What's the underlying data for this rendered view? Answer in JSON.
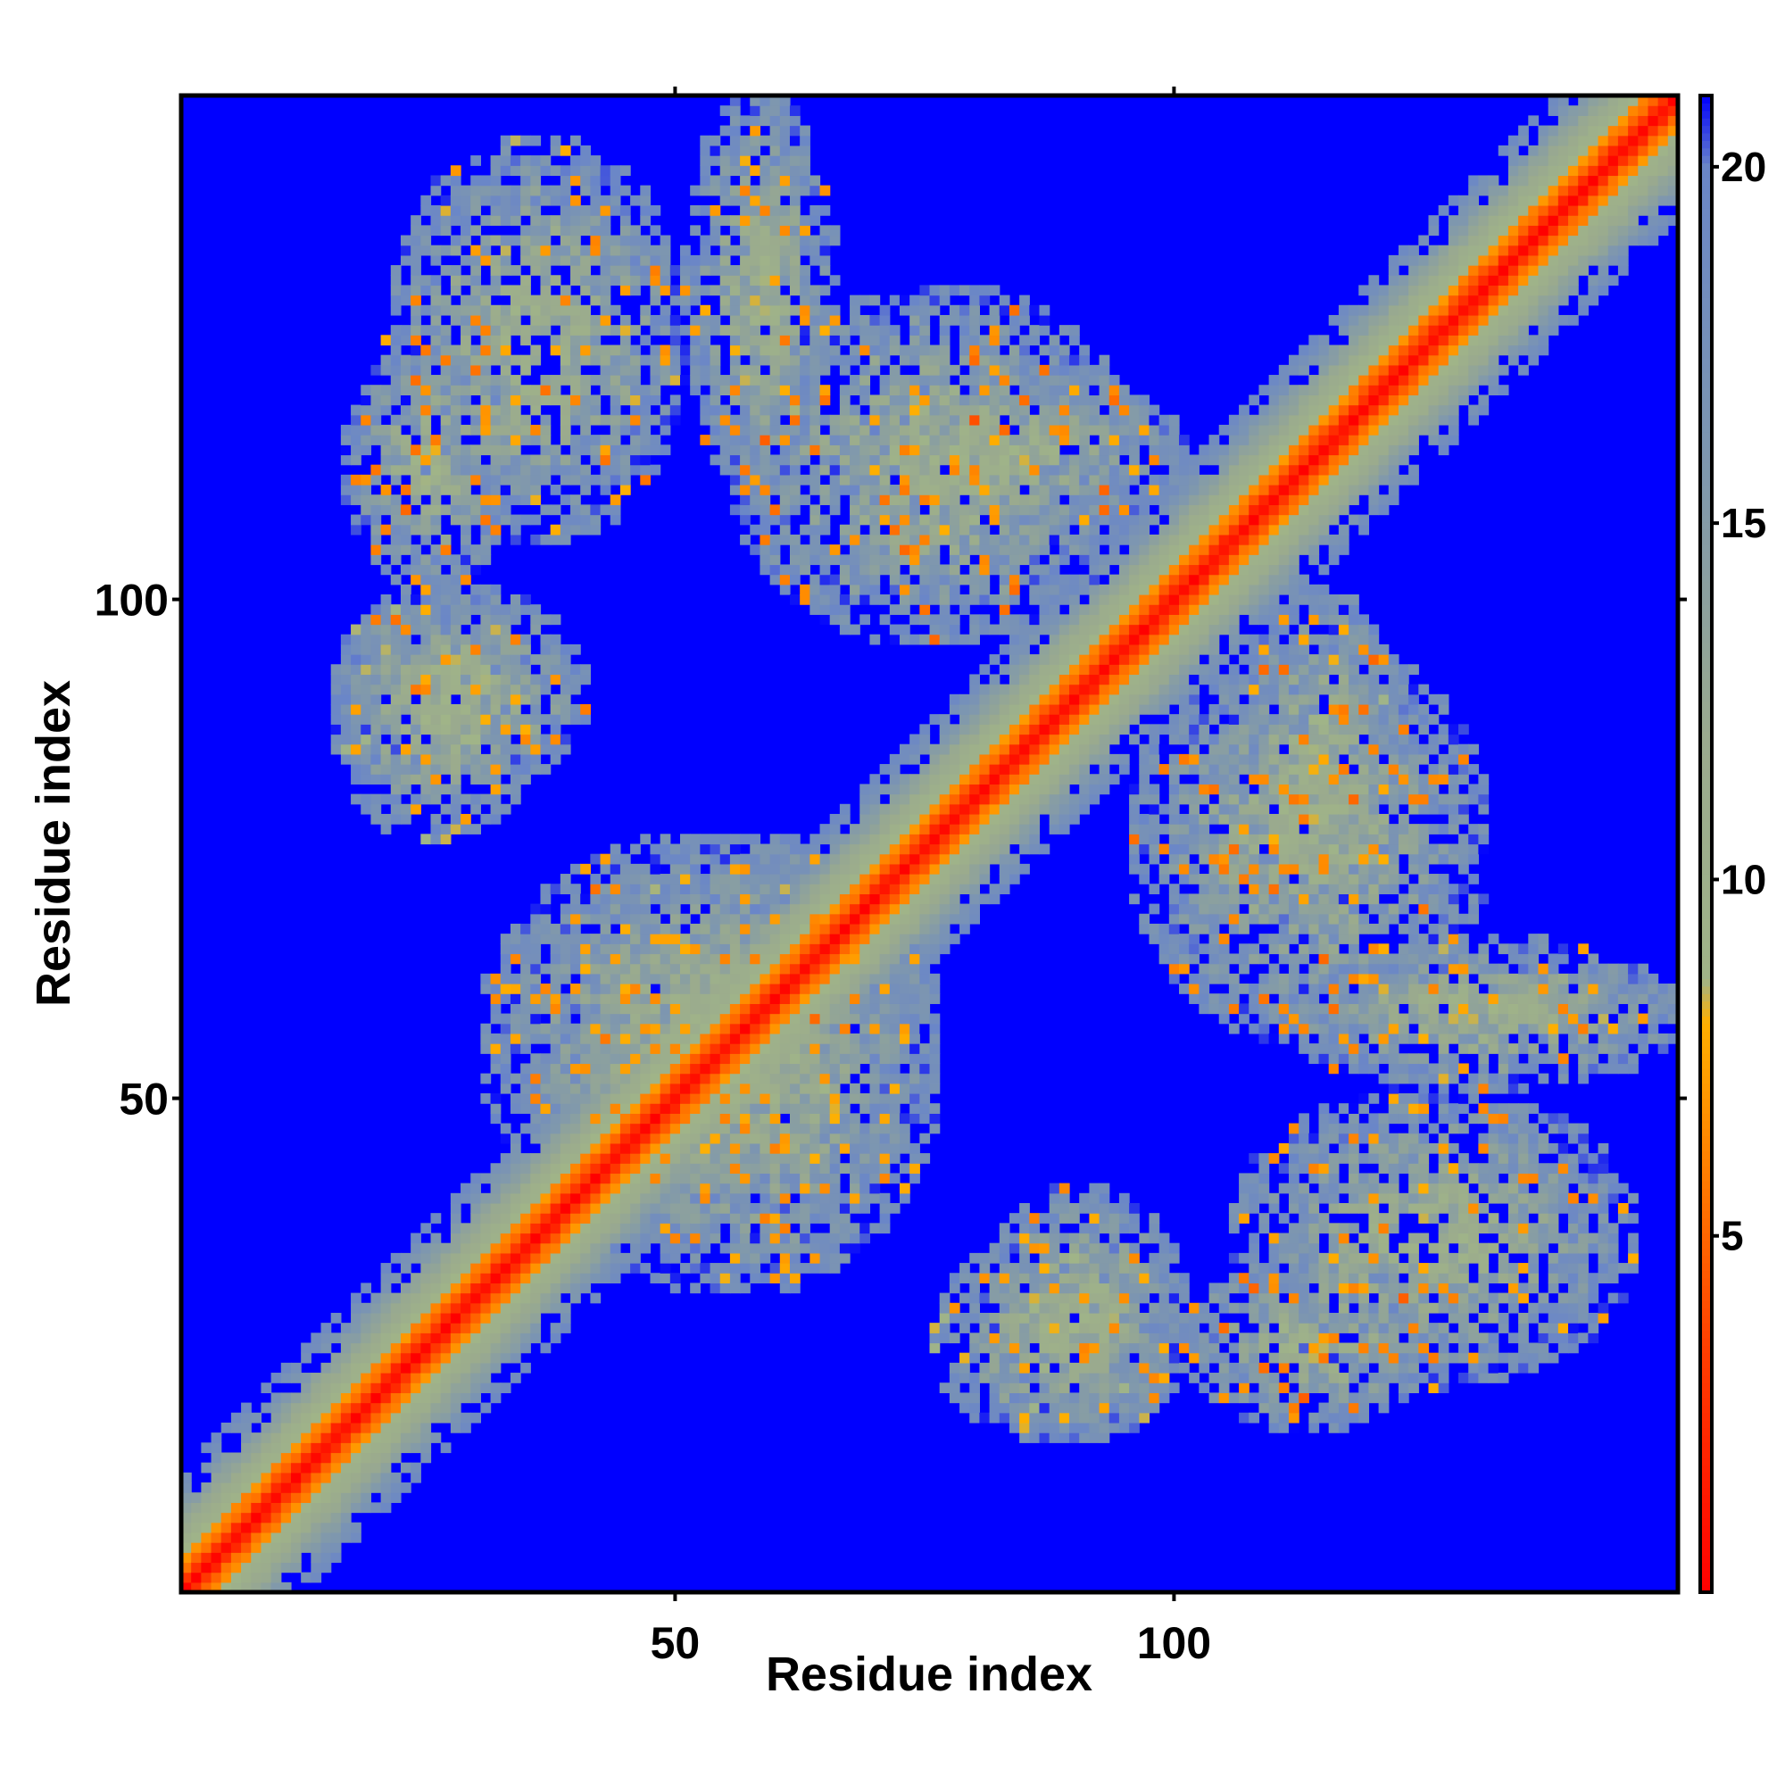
{
  "chart_data": {
    "type": "heatmap",
    "title": "",
    "xlabel": "Residue index",
    "ylabel": "Residue index",
    "n_residues": 150,
    "xlim": [
      1,
      150
    ],
    "ylim": [
      1,
      150
    ],
    "x_ticks": [
      50,
      100
    ],
    "y_ticks": [
      50,
      100
    ],
    "colorbar": {
      "ticks": [
        5,
        10,
        15,
        20
      ],
      "range": [
        0,
        21
      ],
      "stops": [
        {
          "value": 0,
          "color": "#ff0000"
        },
        {
          "value": 3.5,
          "color": "#ff4000"
        },
        {
          "value": 6,
          "color": "#ff8000"
        },
        {
          "value": 8,
          "color": "#ffb000"
        },
        {
          "value": 8.6,
          "color": "#a0b488"
        },
        {
          "value": 12,
          "color": "#9aaa8e"
        },
        {
          "value": 16,
          "color": "#7d96b0"
        },
        {
          "value": 20,
          "color": "#6a86c8"
        },
        {
          "value": 21,
          "color": "#0000ff"
        }
      ]
    },
    "background_color": "#0000ff",
    "secondary_structure_contacts": [
      {
        "type": "antiparallel",
        "i": [
          3,
          42
        ],
        "j": [
          3,
          42
        ],
        "note": "main diagonal band"
      },
      {
        "type": "cluster",
        "i": [
          16,
          33
        ],
        "j": [
          100,
          125
        ],
        "peak": 5
      },
      {
        "type": "cluster",
        "i": [
          50,
          65
        ],
        "j": [
          110,
          150
        ],
        "peak": 6
      },
      {
        "type": "cluster",
        "i": [
          65,
          100
        ],
        "j": [
          105,
          122
        ],
        "peak": 6
      },
      {
        "type": "cluster",
        "i": [
          90,
          96
        ],
        "j": [
          86,
          100
        ],
        "peak": 6
      },
      {
        "type": "cluster",
        "i": [
          95,
          130
        ],
        "j": [
          55,
          95
        ],
        "peak": 5
      },
      {
        "type": "cluster",
        "i": [
          110,
          150
        ],
        "j": [
          55,
          62
        ],
        "peak": 6
      },
      {
        "type": "cluster",
        "i": [
          105,
          145
        ],
        "j": [
          20,
          50
        ],
        "peak": 6
      },
      {
        "type": "cluster",
        "i": [
          80,
          100
        ],
        "j": [
          15,
          40
        ],
        "peak": 6
      },
      {
        "type": "cluster",
        "i": [
          30,
          75
        ],
        "j": [
          35,
          75
        ],
        "peak": 6
      },
      {
        "type": "cluster",
        "i": [
          15,
          35
        ],
        "j": [
          75,
          100
        ],
        "peak": 7
      }
    ]
  }
}
